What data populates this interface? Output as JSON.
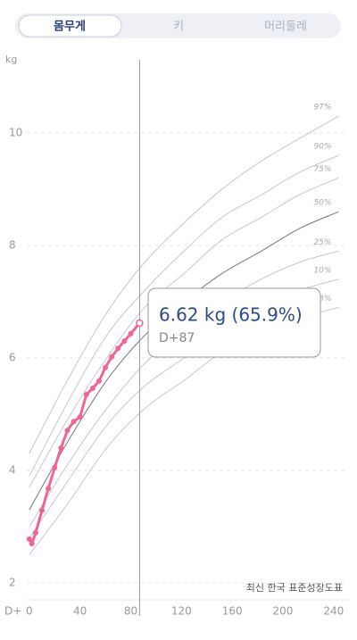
{
  "tabs": [
    "몸무게",
    "키",
    "머리둘레"
  ],
  "chart_data": {
    "type": "line",
    "y_label": "kg",
    "x_label": "D+",
    "caption": "최신 한국 표준성장도표",
    "xlim": [
      -2,
      250
    ],
    "ylim": [
      1.7,
      11.3
    ],
    "xticks": [
      0,
      40,
      80,
      120,
      160,
      200,
      240
    ],
    "yticks": [
      2,
      4,
      6,
      8,
      10
    ],
    "grid": true,
    "x": [
      0,
      30,
      61,
      91,
      122,
      152,
      183,
      213,
      244
    ],
    "series": [
      {
        "name": "97%",
        "color": "#c8c8c8",
        "values": [
          4.3,
          5.6,
          6.8,
          7.7,
          8.4,
          9.0,
          9.5,
          9.9,
          10.3
        ]
      },
      {
        "name": "90%",
        "color": "#c8c8c8",
        "values": [
          3.9,
          5.2,
          6.4,
          7.2,
          7.9,
          8.5,
          8.9,
          9.3,
          9.6
        ]
      },
      {
        "name": "75%",
        "color": "#c8c8c8",
        "values": [
          3.7,
          4.9,
          6.0,
          6.9,
          7.5,
          8.1,
          8.5,
          8.9,
          9.2
        ]
      },
      {
        "name": "50%",
        "color": "#777777",
        "values": [
          3.3,
          4.5,
          5.6,
          6.4,
          7.0,
          7.5,
          7.9,
          8.3,
          8.6
        ]
      },
      {
        "name": "25%",
        "color": "#c8c8c8",
        "values": [
          3.0,
          4.1,
          5.1,
          5.9,
          6.5,
          7.0,
          7.4,
          7.7,
          7.9
        ]
      },
      {
        "name": "10%",
        "color": "#c8c8c8",
        "values": [
          2.8,
          3.8,
          4.8,
          5.5,
          6.0,
          6.5,
          6.9,
          7.2,
          7.4
        ]
      },
      {
        "name": "3%",
        "color": "#c8c8c8",
        "values": [
          2.5,
          3.4,
          4.4,
          5.1,
          5.6,
          6.1,
          6.4,
          6.7,
          6.9
        ]
      }
    ],
    "measurements": {
      "color": "#f06592",
      "x": [
        0,
        2,
        5,
        10,
        15,
        20,
        25,
        30,
        35,
        40,
        45,
        50,
        55,
        60,
        65,
        70,
        75,
        80,
        87
      ],
      "values": [
        2.78,
        2.7,
        2.89,
        3.29,
        3.68,
        4.05,
        4.4,
        4.71,
        4.87,
        4.95,
        5.35,
        5.46,
        5.59,
        5.83,
        6.02,
        6.17,
        6.3,
        6.43,
        6.62
      ]
    },
    "cursor_x": 87,
    "tooltip": {
      "text": "6.62 kg (65.9%)",
      "sub": "D+87"
    }
  }
}
